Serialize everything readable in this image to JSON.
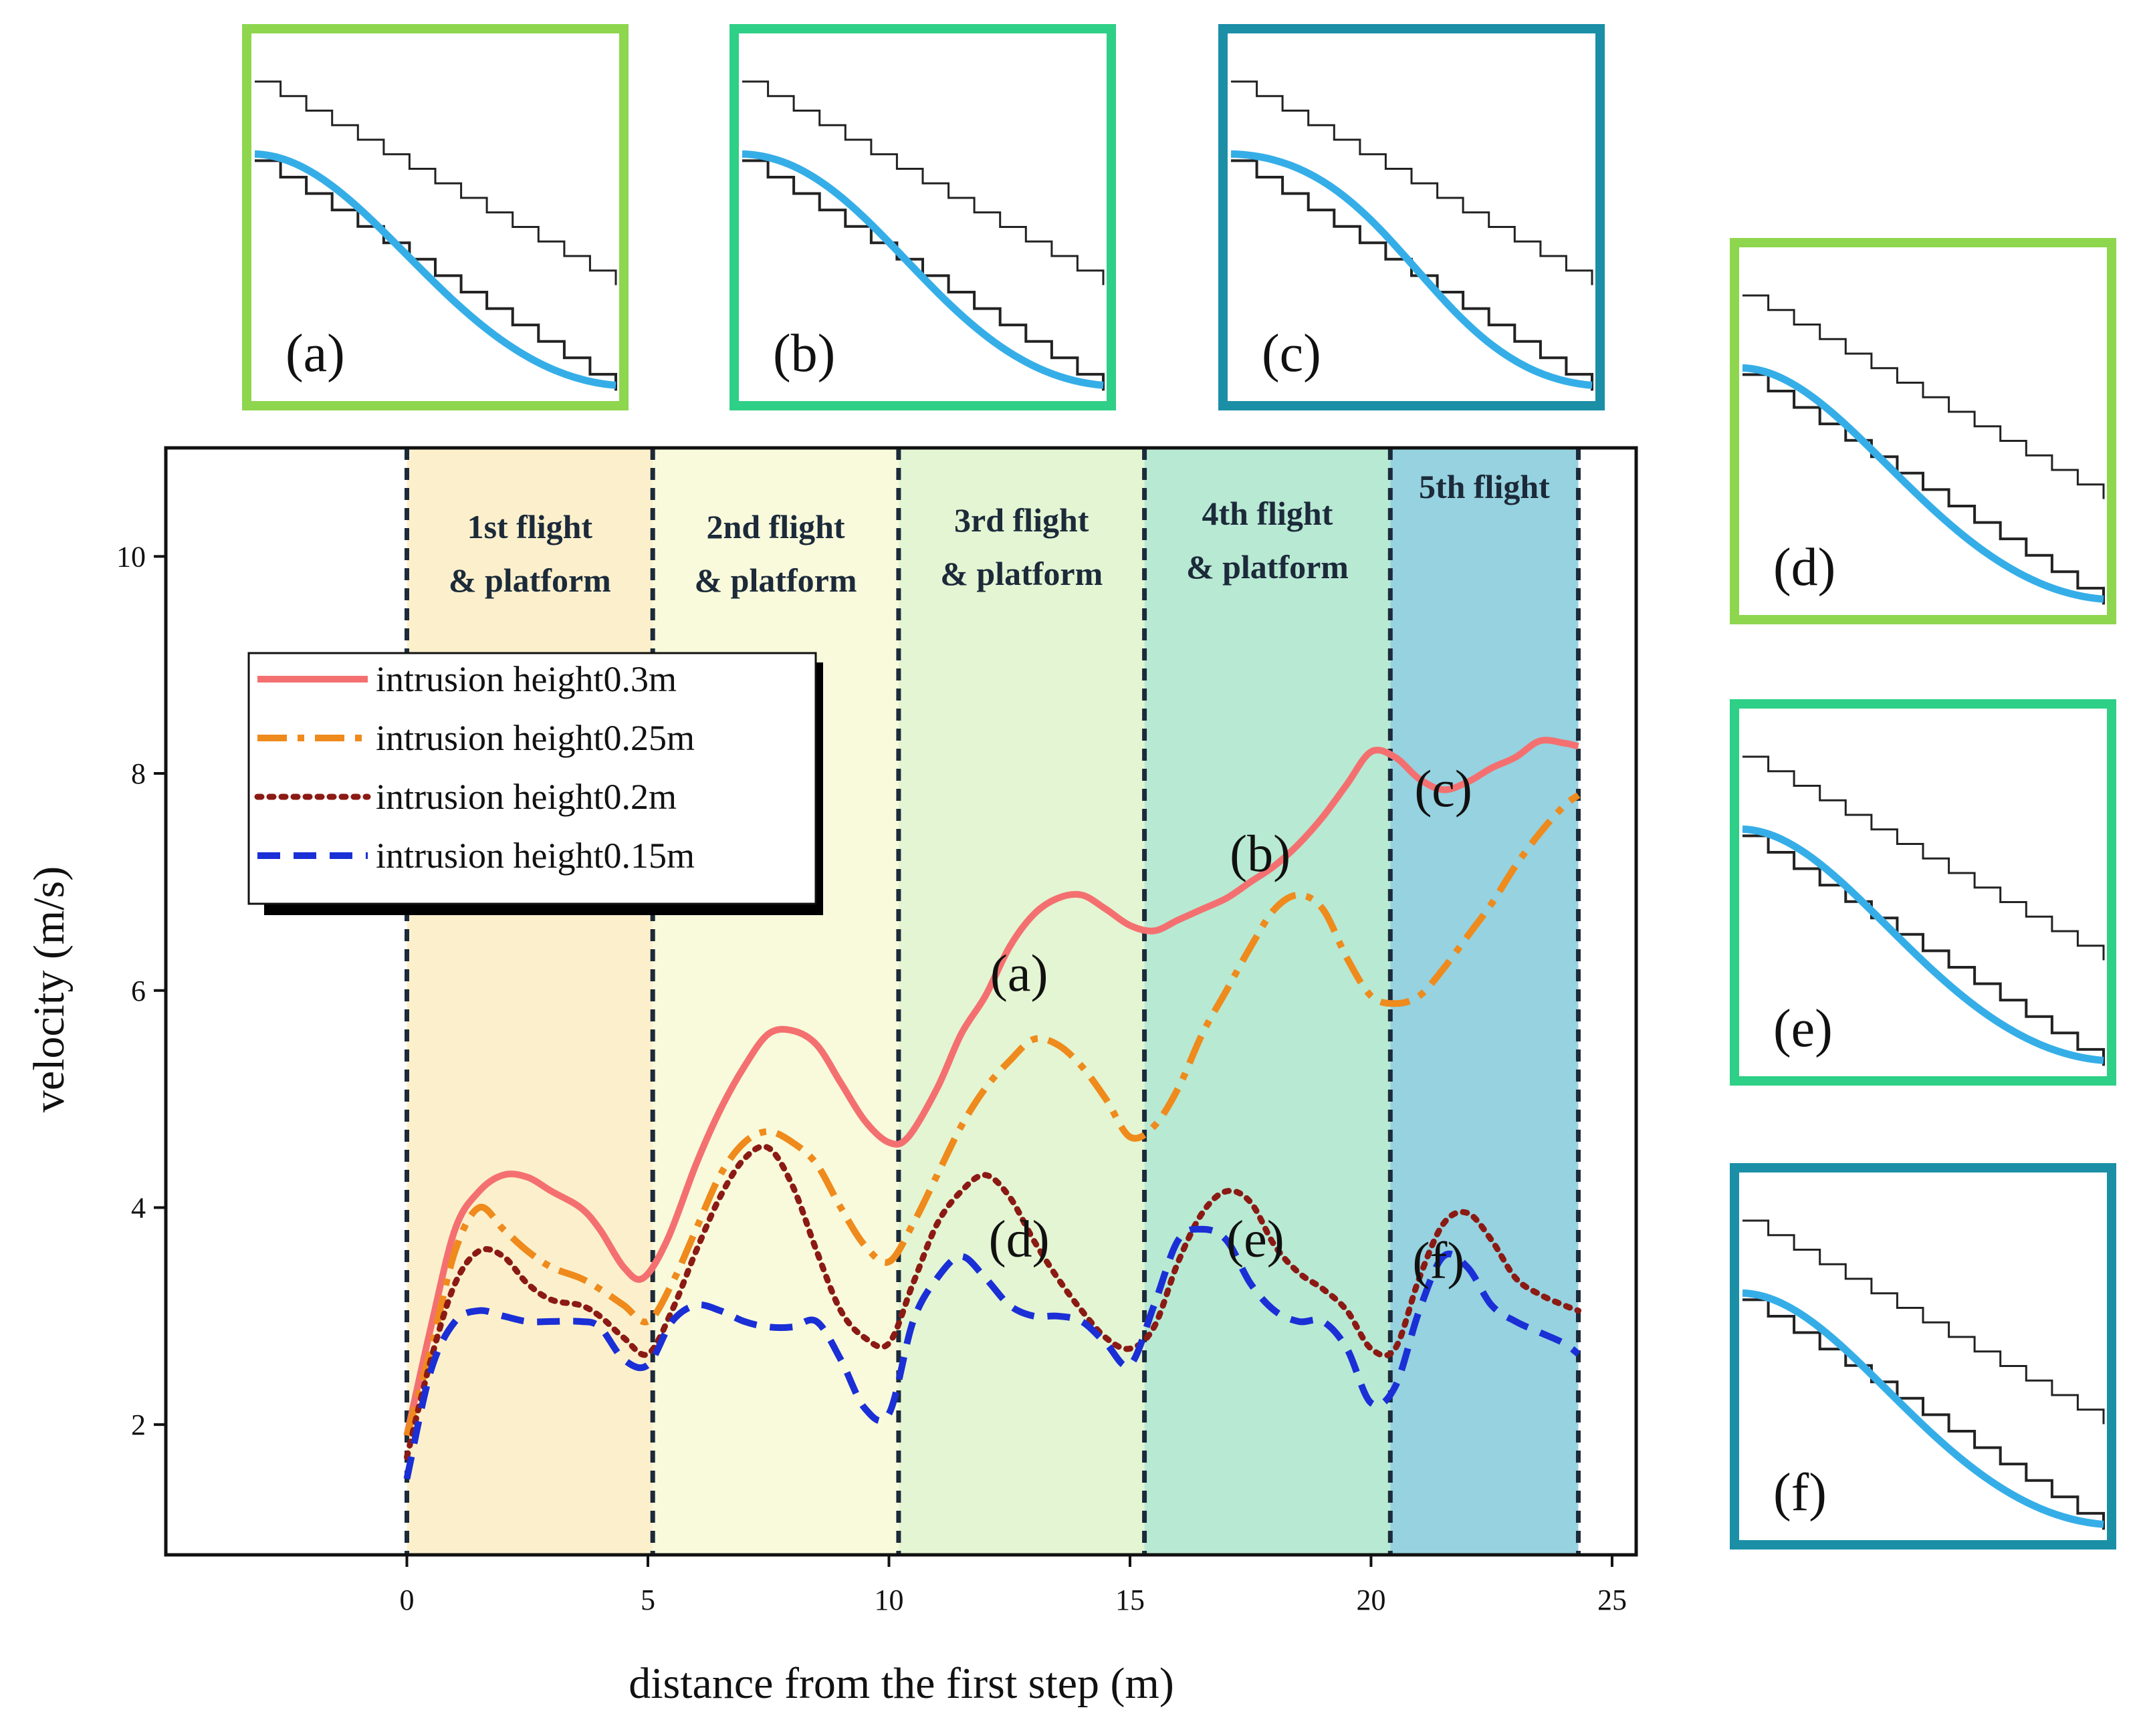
{
  "chart_data": {
    "type": "line",
    "xlabel": "distance from the first step (m)",
    "ylabel": "velocity (m/s)",
    "xlim": [
      -5,
      25.5
    ],
    "ylim": [
      0.8,
      11
    ],
    "x_ticks": [
      "0",
      "5",
      "10",
      "15",
      "20",
      "25"
    ],
    "y_ticks": [
      "2",
      "4",
      "6",
      "8",
      "10"
    ],
    "boundaries": [
      0,
      5.1,
      10.2,
      15.3,
      20.4,
      24.3
    ],
    "bands": [
      {
        "line1": "1st flight",
        "line2": "& platform",
        "color": "#fcf0cc",
        "text_color": "#1c2a3a"
      },
      {
        "line1": "2nd flight",
        "line2": "& platform",
        "color": "#f8fadb",
        "text_color": "#1c2a3a"
      },
      {
        "line1": "3rd flight",
        "line2": "& platform",
        "color": "#e3f5d2",
        "text_color": "#1c2a3a"
      },
      {
        "line1": "4th flight",
        "line2": "& platform",
        "color": "#b8e9d3",
        "text_color": "#1c2a3a"
      },
      {
        "line1": "5th flight",
        "line2": "",
        "color": "#96d2df",
        "text_color": "#1c2a3a"
      }
    ],
    "legend": [
      "intrusion height0.3m",
      "intrusion height0.25m",
      "intrusion height0.2m",
      "intrusion height0.15m"
    ],
    "series": [
      {
        "name": "intrusion height0.3m",
        "color": "#f47070",
        "style": "solid",
        "x": [
          0,
          0.5,
          1.0,
          1.5,
          2.0,
          2.5,
          3.0,
          3.6,
          4.0,
          4.5,
          4.9,
          5.4,
          6.0,
          6.5,
          7.0,
          7.5,
          8.0,
          8.5,
          9.0,
          9.5,
          10.0,
          10.4,
          11.0,
          11.5,
          12.0,
          12.5,
          13.0,
          13.5,
          14.0,
          14.5,
          15.0,
          15.5,
          16.0,
          16.5,
          17.0,
          17.5,
          18.0,
          18.5,
          19.0,
          19.5,
          20.0,
          20.5,
          21.0,
          21.5,
          22.0,
          22.5,
          23.0,
          23.5,
          24.0,
          24.3
        ],
        "y": [
          1.9,
          2.9,
          3.8,
          4.15,
          4.3,
          4.28,
          4.15,
          4.0,
          3.8,
          3.45,
          3.35,
          3.7,
          4.4,
          4.9,
          5.3,
          5.6,
          5.63,
          5.5,
          5.15,
          4.8,
          4.6,
          4.65,
          5.1,
          5.6,
          5.95,
          6.4,
          6.7,
          6.85,
          6.88,
          6.75,
          6.6,
          6.55,
          6.65,
          6.75,
          6.85,
          7.0,
          7.15,
          7.35,
          7.6,
          7.9,
          8.2,
          8.15,
          7.95,
          7.85,
          7.92,
          8.05,
          8.15,
          8.3,
          8.28,
          8.25
        ]
      },
      {
        "name": "intrusion height0.25m",
        "color": "#ef8a1c",
        "style": "dashdot",
        "x": [
          0,
          0.5,
          1.0,
          1.5,
          2.0,
          2.5,
          3.0,
          3.6,
          4.0,
          4.5,
          5.0,
          5.5,
          6.0,
          6.5,
          7.0,
          7.5,
          8.0,
          8.5,
          9.0,
          9.5,
          10.0,
          10.5,
          11.0,
          11.5,
          12.0,
          12.5,
          13.0,
          13.5,
          14.0,
          14.5,
          15.0,
          15.5,
          16.0,
          16.5,
          17.0,
          17.5,
          18.0,
          18.5,
          19.0,
          19.5,
          20.0,
          20.5,
          21.0,
          21.5,
          22.0,
          22.5,
          23.0,
          23.5,
          24.0,
          24.3
        ],
        "y": [
          1.9,
          2.7,
          3.6,
          4.0,
          3.8,
          3.6,
          3.45,
          3.35,
          3.25,
          3.1,
          2.95,
          3.3,
          3.8,
          4.3,
          4.6,
          4.7,
          4.6,
          4.4,
          4.0,
          3.65,
          3.5,
          3.85,
          4.3,
          4.75,
          5.1,
          5.35,
          5.55,
          5.5,
          5.3,
          5.0,
          4.65,
          4.75,
          5.1,
          5.6,
          6.0,
          6.4,
          6.75,
          6.88,
          6.75,
          6.3,
          5.95,
          5.88,
          5.95,
          6.2,
          6.5,
          6.8,
          7.15,
          7.45,
          7.7,
          7.8
        ]
      },
      {
        "name": "intrusion height0.2m",
        "color": "#8b1a14",
        "style": "dotted",
        "x": [
          0,
          0.5,
          1.0,
          1.5,
          2.0,
          2.5,
          3.0,
          3.6,
          4.0,
          4.5,
          5.0,
          5.5,
          6.0,
          6.5,
          7.0,
          7.5,
          8.0,
          8.5,
          9.0,
          9.5,
          10.0,
          10.5,
          11.0,
          11.5,
          12.0,
          12.5,
          13.0,
          13.5,
          14.0,
          14.5,
          15.0,
          15.5,
          16.0,
          16.5,
          17.0,
          17.5,
          18.0,
          18.5,
          19.0,
          19.5,
          20.0,
          20.5,
          21.0,
          21.5,
          22.0,
          22.5,
          23.0,
          23.5,
          24.0,
          24.3
        ],
        "y": [
          1.7,
          2.6,
          3.3,
          3.6,
          3.55,
          3.3,
          3.15,
          3.1,
          3.0,
          2.8,
          2.65,
          3.05,
          3.6,
          4.1,
          4.45,
          4.55,
          4.2,
          3.6,
          3.05,
          2.8,
          2.75,
          3.3,
          3.85,
          4.15,
          4.3,
          4.1,
          3.7,
          3.35,
          3.05,
          2.8,
          2.7,
          2.9,
          3.5,
          3.95,
          4.15,
          4.05,
          3.65,
          3.4,
          3.25,
          3.05,
          2.7,
          2.7,
          3.35,
          3.85,
          3.95,
          3.7,
          3.35,
          3.2,
          3.1,
          3.05
        ]
      },
      {
        "name": "intrusion height0.15m",
        "color": "#1a2fd6",
        "style": "dashed",
        "x": [
          0,
          0.5,
          1.0,
          1.5,
          2.0,
          2.5,
          3.0,
          3.6,
          4.0,
          4.5,
          5.0,
          5.5,
          6.0,
          6.5,
          7.0,
          7.5,
          8.0,
          8.5,
          9.0,
          9.5,
          10.0,
          10.5,
          11.0,
          11.5,
          12.0,
          12.5,
          13.0,
          13.5,
          14.0,
          14.5,
          15.0,
          15.5,
          16.0,
          16.5,
          17.0,
          17.5,
          18.0,
          18.5,
          19.0,
          19.5,
          20.0,
          20.5,
          21.0,
          21.5,
          22.0,
          22.5,
          23.0,
          23.5,
          24.0,
          24.3
        ],
        "y": [
          1.5,
          2.5,
          2.95,
          3.05,
          3.0,
          2.95,
          2.95,
          2.95,
          2.9,
          2.6,
          2.55,
          2.95,
          3.1,
          3.05,
          2.95,
          2.9,
          2.9,
          2.95,
          2.6,
          2.15,
          2.1,
          2.95,
          3.35,
          3.55,
          3.35,
          3.1,
          3.0,
          3.0,
          2.95,
          2.75,
          2.55,
          3.1,
          3.7,
          3.8,
          3.7,
          3.3,
          3.05,
          2.95,
          2.95,
          2.7,
          2.2,
          2.35,
          3.05,
          3.55,
          3.45,
          3.1,
          2.95,
          2.85,
          2.75,
          2.65
        ]
      }
    ],
    "annotations": [
      {
        "text": "(a)",
        "x": 12.7,
        "y": 6.0
      },
      {
        "text": "(b)",
        "x": 17.7,
        "y": 7.1
      },
      {
        "text": "(c)",
        "x": 21.5,
        "y": 7.7
      },
      {
        "text": "(d)",
        "x": 12.7,
        "y": 3.55
      },
      {
        "text": "(e)",
        "x": 17.6,
        "y": 3.55
      },
      {
        "text": "(f)",
        "x": 21.4,
        "y": 3.35
      }
    ]
  },
  "insets": [
    {
      "label": "(a)",
      "frame_color": "#8ed64e"
    },
    {
      "label": "(b)",
      "frame_color": "#2ecf86"
    },
    {
      "label": "(c)",
      "frame_color": "#1a8fa6"
    },
    {
      "label": "(d)",
      "frame_color": "#8ed64e"
    },
    {
      "label": "(e)",
      "frame_color": "#2ecf86"
    },
    {
      "label": "(f)",
      "frame_color": "#1a8fa6"
    }
  ],
  "colors": {
    "axis": "#111111",
    "boundary": "#1c2a3a",
    "flow": "#35aee8",
    "stair": "#222222"
  }
}
